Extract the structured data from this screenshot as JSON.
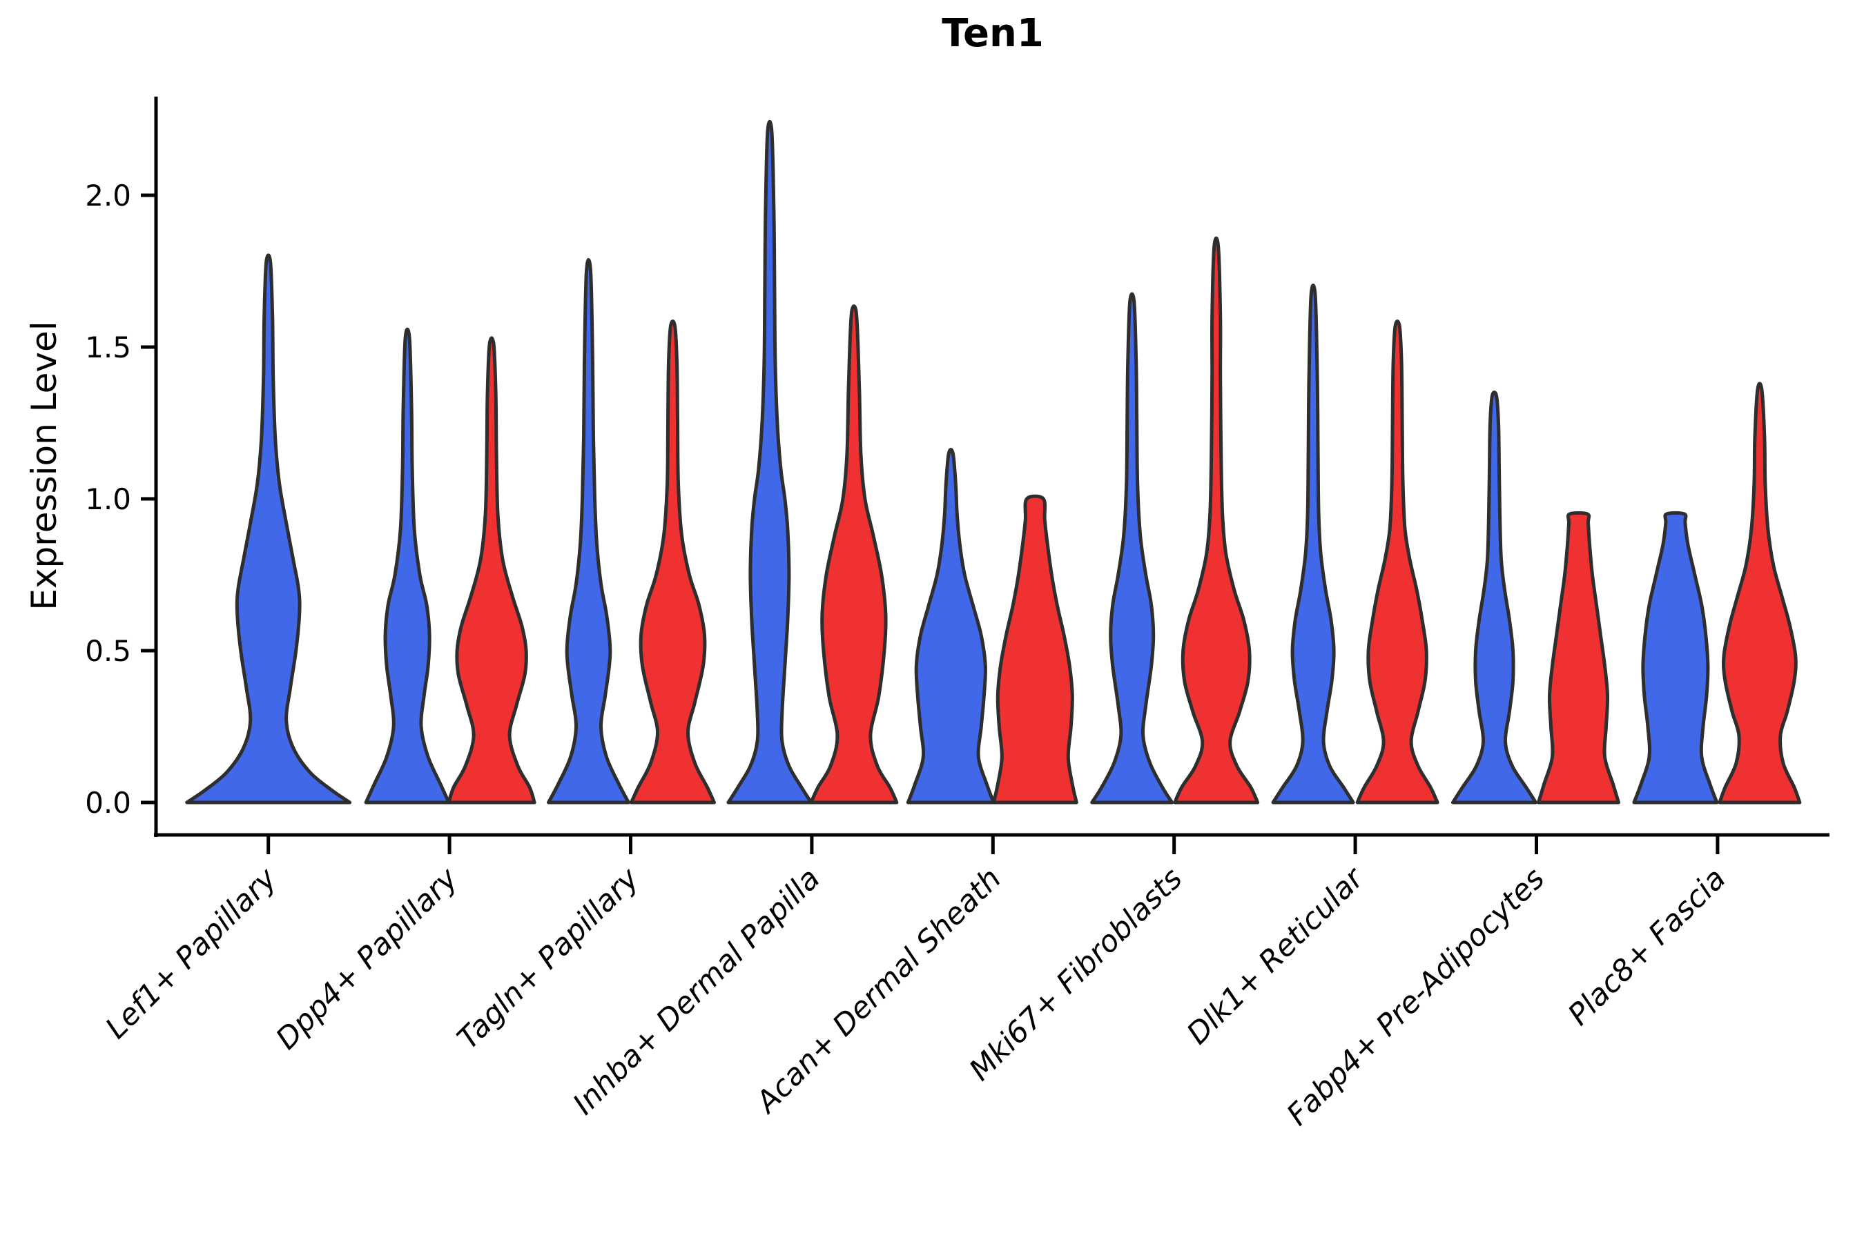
{
  "figure": {
    "title": "Ten1",
    "y_axis_label": "Expression Level"
  },
  "chart_data": {
    "type": "violin",
    "title": "Ten1",
    "xlabel": "",
    "ylabel": "Expression Level",
    "ylim": [
      0,
      2.3
    ],
    "yticks": [
      0.0,
      0.5,
      1.0,
      1.5,
      2.0
    ],
    "ytick_labels": [
      "0.0",
      "0.5",
      "1.0",
      "1.5",
      "2.0"
    ],
    "grid": false,
    "legend": "none",
    "categories": [
      "Lef1+ Papillary",
      "Dpp4+ Papillary",
      "Tagln+ Papillary",
      "Inhba+ Dermal Papilla",
      "Acan+ Dermal Sheath",
      "Mki67+ Fibroblasts",
      "Dlk1+ Reticular",
      "Fabp4+ Pre-Adipocytes",
      "Plac8+ Fascia"
    ],
    "colors": {
      "blue": "#4168E8",
      "red": "#F03131",
      "outline": "#2E2E2E",
      "axis": "#000000"
    },
    "series": [
      {
        "name": "blue-group",
        "color": "#4168E8",
        "max_expression": [
          1.78,
          1.53,
          1.75,
          2.21,
          1.15,
          1.65,
          1.67,
          1.34,
          0.95
        ]
      },
      {
        "name": "red-group",
        "color": "#F03131",
        "max_expression": [
          null,
          1.51,
          1.57,
          1.62,
          1.0,
          1.83,
          1.57,
          0.95,
          1.36
        ]
      }
    ],
    "violins": [
      {
        "category_index": 0,
        "group": "blue",
        "side": "single",
        "max": 1.78,
        "blunt_top": false,
        "profile": [
          [
            0,
            118
          ],
          [
            0.04,
            92
          ],
          [
            0.1,
            60
          ],
          [
            0.18,
            36
          ],
          [
            0.27,
            26
          ],
          [
            0.38,
            32
          ],
          [
            0.5,
            40
          ],
          [
            0.62,
            45
          ],
          [
            0.7,
            44
          ],
          [
            0.8,
            36
          ],
          [
            0.92,
            26
          ],
          [
            1.05,
            16
          ],
          [
            1.2,
            10
          ],
          [
            1.4,
            7
          ],
          [
            1.6,
            6
          ],
          [
            1.78,
            3
          ]
        ]
      },
      {
        "category_index": 1,
        "group": "blue",
        "side": "left",
        "max": 1.53,
        "blunt_top": false,
        "profile": [
          [
            0,
            60
          ],
          [
            0.06,
            48
          ],
          [
            0.15,
            30
          ],
          [
            0.25,
            20
          ],
          [
            0.35,
            24
          ],
          [
            0.45,
            30
          ],
          [
            0.55,
            32
          ],
          [
            0.65,
            28
          ],
          [
            0.75,
            18
          ],
          [
            0.9,
            10
          ],
          [
            1.1,
            7
          ],
          [
            1.3,
            6
          ],
          [
            1.53,
            3
          ]
        ]
      },
      {
        "category_index": 1,
        "group": "red",
        "side": "right",
        "max": 1.51,
        "blunt_top": false,
        "profile": [
          [
            0,
            62
          ],
          [
            0.05,
            55
          ],
          [
            0.12,
            38
          ],
          [
            0.22,
            26
          ],
          [
            0.32,
            36
          ],
          [
            0.42,
            48
          ],
          [
            0.5,
            50
          ],
          [
            0.58,
            44
          ],
          [
            0.68,
            30
          ],
          [
            0.8,
            16
          ],
          [
            0.95,
            9
          ],
          [
            1.15,
            7
          ],
          [
            1.35,
            6
          ],
          [
            1.51,
            3
          ]
        ]
      },
      {
        "category_index": 2,
        "group": "blue",
        "side": "left",
        "max": 1.75,
        "blunt_top": false,
        "profile": [
          [
            0,
            58
          ],
          [
            0.06,
            44
          ],
          [
            0.15,
            26
          ],
          [
            0.25,
            18
          ],
          [
            0.35,
            24
          ],
          [
            0.45,
            30
          ],
          [
            0.52,
            31
          ],
          [
            0.62,
            26
          ],
          [
            0.72,
            18
          ],
          [
            0.85,
            12
          ],
          [
            1.0,
            9
          ],
          [
            1.2,
            7
          ],
          [
            1.45,
            6
          ],
          [
            1.75,
            3
          ]
        ]
      },
      {
        "category_index": 2,
        "group": "red",
        "side": "right",
        "max": 1.57,
        "blunt_top": false,
        "profile": [
          [
            0,
            60
          ],
          [
            0.05,
            50
          ],
          [
            0.13,
            32
          ],
          [
            0.23,
            22
          ],
          [
            0.33,
            32
          ],
          [
            0.45,
            44
          ],
          [
            0.55,
            46
          ],
          [
            0.65,
            38
          ],
          [
            0.75,
            24
          ],
          [
            0.88,
            13
          ],
          [
            1.05,
            8
          ],
          [
            1.25,
            7
          ],
          [
            1.45,
            6
          ],
          [
            1.57,
            3
          ]
        ]
      },
      {
        "category_index": 3,
        "group": "blue",
        "side": "left",
        "max": 2.21,
        "blunt_top": false,
        "profile": [
          [
            0,
            60
          ],
          [
            0.05,
            46
          ],
          [
            0.12,
            28
          ],
          [
            0.2,
            18
          ],
          [
            0.3,
            18
          ],
          [
            0.45,
            22
          ],
          [
            0.6,
            26
          ],
          [
            0.75,
            28
          ],
          [
            0.9,
            26
          ],
          [
            1.0,
            22
          ],
          [
            1.1,
            16
          ],
          [
            1.25,
            11
          ],
          [
            1.45,
            8
          ],
          [
            1.7,
            7
          ],
          [
            1.95,
            6
          ],
          [
            2.21,
            3
          ]
        ]
      },
      {
        "category_index": 3,
        "group": "red",
        "side": "right",
        "max": 1.62,
        "blunt_top": false,
        "profile": [
          [
            0,
            62
          ],
          [
            0.05,
            52
          ],
          [
            0.12,
            34
          ],
          [
            0.22,
            24
          ],
          [
            0.35,
            36
          ],
          [
            0.5,
            44
          ],
          [
            0.62,
            46
          ],
          [
            0.75,
            40
          ],
          [
            0.88,
            28
          ],
          [
            1.0,
            16
          ],
          [
            1.15,
            10
          ],
          [
            1.35,
            8
          ],
          [
            1.5,
            6
          ],
          [
            1.62,
            3
          ]
        ]
      },
      {
        "category_index": 4,
        "group": "blue",
        "side": "left",
        "max": 1.15,
        "blunt_top": false,
        "profile": [
          [
            0,
            62
          ],
          [
            0.06,
            52
          ],
          [
            0.15,
            40
          ],
          [
            0.25,
            44
          ],
          [
            0.35,
            48
          ],
          [
            0.45,
            50
          ],
          [
            0.55,
            44
          ],
          [
            0.65,
            32
          ],
          [
            0.75,
            20
          ],
          [
            0.85,
            13
          ],
          [
            0.95,
            9
          ],
          [
            1.05,
            7
          ],
          [
            1.15,
            3
          ]
        ]
      },
      {
        "category_index": 4,
        "group": "red",
        "side": "right",
        "max": 1.0,
        "blunt_top": true,
        "profile": [
          [
            0,
            60
          ],
          [
            0.06,
            54
          ],
          [
            0.15,
            48
          ],
          [
            0.25,
            52
          ],
          [
            0.35,
            54
          ],
          [
            0.45,
            50
          ],
          [
            0.55,
            42
          ],
          [
            0.65,
            32
          ],
          [
            0.75,
            24
          ],
          [
            0.85,
            18
          ],
          [
            0.93,
            14
          ],
          [
            1.0,
            12
          ]
        ]
      },
      {
        "category_index": 5,
        "group": "blue",
        "side": "left",
        "max": 1.65,
        "blunt_top": false,
        "profile": [
          [
            0,
            58
          ],
          [
            0.05,
            44
          ],
          [
            0.13,
            26
          ],
          [
            0.22,
            16
          ],
          [
            0.32,
            20
          ],
          [
            0.45,
            28
          ],
          [
            0.55,
            31
          ],
          [
            0.65,
            28
          ],
          [
            0.75,
            20
          ],
          [
            0.88,
            12
          ],
          [
            1.05,
            8
          ],
          [
            1.25,
            7
          ],
          [
            1.45,
            6
          ],
          [
            1.65,
            3
          ]
        ]
      },
      {
        "category_index": 5,
        "group": "red",
        "side": "right",
        "max": 1.83,
        "blunt_top": false,
        "profile": [
          [
            0,
            60
          ],
          [
            0.05,
            50
          ],
          [
            0.12,
            30
          ],
          [
            0.2,
            20
          ],
          [
            0.3,
            34
          ],
          [
            0.4,
            46
          ],
          [
            0.5,
            48
          ],
          [
            0.6,
            40
          ],
          [
            0.7,
            26
          ],
          [
            0.82,
            14
          ],
          [
            0.95,
            9
          ],
          [
            1.15,
            7
          ],
          [
            1.4,
            6
          ],
          [
            1.6,
            6
          ],
          [
            1.83,
            3
          ]
        ]
      },
      {
        "category_index": 6,
        "group": "blue",
        "side": "left",
        "max": 1.67,
        "blunt_top": false,
        "profile": [
          [
            0,
            58
          ],
          [
            0.05,
            44
          ],
          [
            0.12,
            24
          ],
          [
            0.2,
            15
          ],
          [
            0.3,
            20
          ],
          [
            0.4,
            27
          ],
          [
            0.5,
            30
          ],
          [
            0.6,
            26
          ],
          [
            0.7,
            18
          ],
          [
            0.82,
            11
          ],
          [
            0.95,
            8
          ],
          [
            1.15,
            7
          ],
          [
            1.4,
            6
          ],
          [
            1.67,
            3
          ]
        ]
      },
      {
        "category_index": 6,
        "group": "red",
        "side": "right",
        "max": 1.57,
        "blunt_top": false,
        "profile": [
          [
            0,
            58
          ],
          [
            0.05,
            48
          ],
          [
            0.12,
            30
          ],
          [
            0.2,
            20
          ],
          [
            0.3,
            30
          ],
          [
            0.4,
            40
          ],
          [
            0.5,
            42
          ],
          [
            0.6,
            36
          ],
          [
            0.7,
            28
          ],
          [
            0.8,
            18
          ],
          [
            0.9,
            11
          ],
          [
            1.05,
            8
          ],
          [
            1.25,
            7
          ],
          [
            1.45,
            6
          ],
          [
            1.57,
            3
          ]
        ]
      },
      {
        "category_index": 7,
        "group": "blue",
        "side": "left",
        "max": 1.34,
        "blunt_top": false,
        "profile": [
          [
            0,
            60
          ],
          [
            0.05,
            46
          ],
          [
            0.12,
            26
          ],
          [
            0.2,
            16
          ],
          [
            0.3,
            22
          ],
          [
            0.4,
            27
          ],
          [
            0.5,
            27
          ],
          [
            0.6,
            22
          ],
          [
            0.7,
            15
          ],
          [
            0.8,
            10
          ],
          [
            0.95,
            8
          ],
          [
            1.1,
            7
          ],
          [
            1.25,
            6
          ],
          [
            1.34,
            3
          ]
        ]
      },
      {
        "category_index": 7,
        "group": "red",
        "side": "right",
        "max": 0.95,
        "blunt_top": true,
        "profile": [
          [
            0,
            58
          ],
          [
            0.06,
            50
          ],
          [
            0.15,
            38
          ],
          [
            0.25,
            40
          ],
          [
            0.35,
            42
          ],
          [
            0.45,
            38
          ],
          [
            0.55,
            32
          ],
          [
            0.65,
            26
          ],
          [
            0.75,
            20
          ],
          [
            0.85,
            16
          ],
          [
            0.92,
            14
          ],
          [
            0.95,
            13
          ]
        ]
      },
      {
        "category_index": 8,
        "group": "blue",
        "side": "left",
        "max": 0.95,
        "blunt_top": true,
        "profile": [
          [
            0,
            60
          ],
          [
            0.06,
            50
          ],
          [
            0.15,
            38
          ],
          [
            0.25,
            40
          ],
          [
            0.35,
            45
          ],
          [
            0.45,
            47
          ],
          [
            0.55,
            44
          ],
          [
            0.65,
            38
          ],
          [
            0.75,
            28
          ],
          [
            0.85,
            18
          ],
          [
            0.92,
            14
          ],
          [
            0.95,
            13
          ]
        ]
      },
      {
        "category_index": 8,
        "group": "red",
        "side": "right",
        "max": 1.36,
        "blunt_top": false,
        "profile": [
          [
            0,
            58
          ],
          [
            0.05,
            50
          ],
          [
            0.13,
            34
          ],
          [
            0.22,
            30
          ],
          [
            0.3,
            40
          ],
          [
            0.4,
            50
          ],
          [
            0.48,
            52
          ],
          [
            0.58,
            44
          ],
          [
            0.68,
            32
          ],
          [
            0.78,
            20
          ],
          [
            0.9,
            12
          ],
          [
            1.05,
            8
          ],
          [
            1.2,
            7
          ],
          [
            1.36,
            3
          ]
        ]
      }
    ]
  }
}
